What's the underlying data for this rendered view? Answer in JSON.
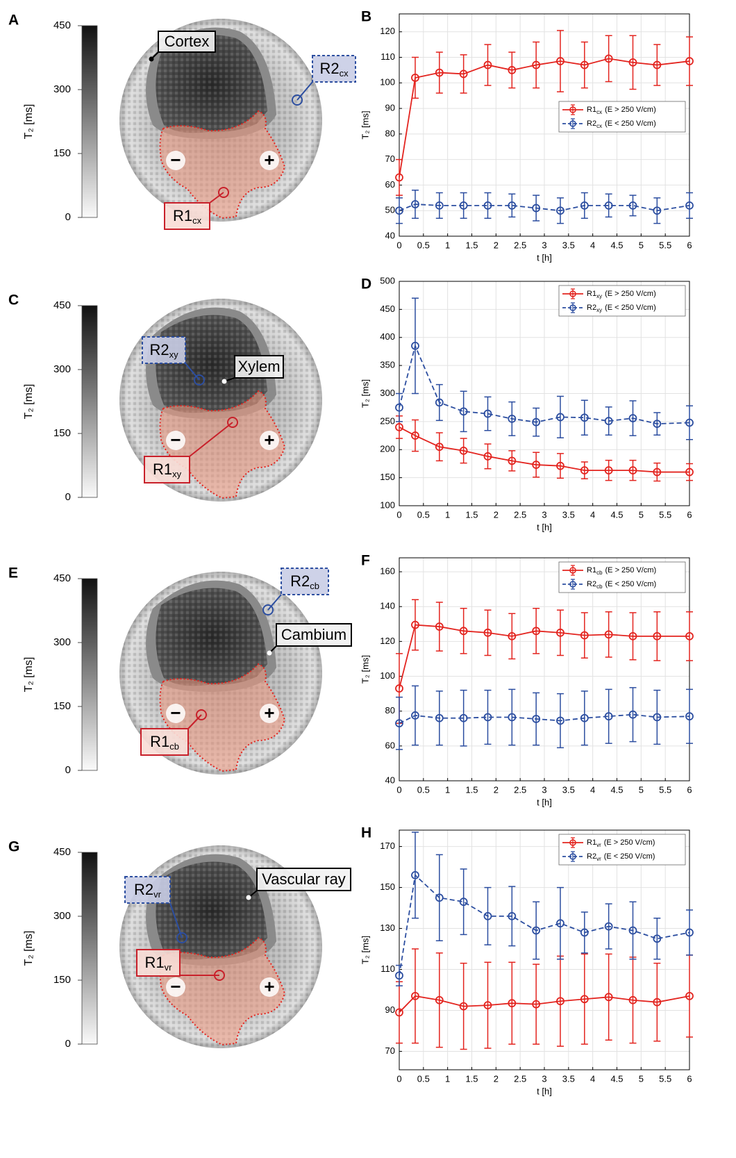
{
  "image_panels": [
    {
      "letter": "A",
      "colorbar": {
        "label": "T₂ [ms]",
        "ylim": [
          0,
          450
        ],
        "yticks": [
          0,
          150,
          300,
          450
        ]
      },
      "electrodes": [
        "−",
        "+"
      ],
      "labels": [
        {
          "text": "Cortex",
          "color": "#000000",
          "border": "solid",
          "marker": "dot"
        },
        {
          "text": "R2",
          "sub": "cx",
          "color": "#2c4ea0",
          "border": "dashed",
          "marker": "circle"
        },
        {
          "text": "R1",
          "sub": "cx",
          "color": "#c8202a",
          "border": "solid",
          "marker": "circle"
        }
      ]
    },
    {
      "letter": "C",
      "colorbar": {
        "label": "T₂ [ms]",
        "ylim": [
          0,
          450
        ],
        "yticks": [
          0,
          150,
          300,
          450
        ]
      },
      "electrodes": [
        "−",
        "+"
      ],
      "labels": [
        {
          "text": "R2",
          "sub": "xy",
          "color": "#2c4ea0",
          "border": "dashed",
          "marker": "circle"
        },
        {
          "text": "Xylem",
          "color": "#000000",
          "border": "solid",
          "marker": "dot"
        },
        {
          "text": "R1",
          "sub": "xy",
          "color": "#c8202a",
          "border": "solid",
          "marker": "circle"
        }
      ]
    },
    {
      "letter": "E",
      "colorbar": {
        "label": "T₂ [ms]",
        "ylim": [
          0,
          450
        ],
        "yticks": [
          0,
          150,
          300,
          450
        ]
      },
      "electrodes": [
        "−",
        "+"
      ],
      "labels": [
        {
          "text": "R2",
          "sub": "cb",
          "color": "#2c4ea0",
          "border": "dashed",
          "marker": "circle"
        },
        {
          "text": "Cambium",
          "color": "#000000",
          "border": "solid",
          "marker": "dot"
        },
        {
          "text": "R1",
          "sub": "cb",
          "color": "#c8202a",
          "border": "solid",
          "marker": "circle"
        }
      ]
    },
    {
      "letter": "G",
      "colorbar": {
        "label": "T₂ [ms]",
        "ylim": [
          0,
          450
        ],
        "yticks": [
          0,
          150,
          300,
          450
        ]
      },
      "electrodes": [
        "−",
        "+"
      ],
      "labels": [
        {
          "text": "Vascular ray",
          "color": "#000000",
          "border": "solid",
          "marker": "dot"
        },
        {
          "text": "R2",
          "sub": "vr",
          "color": "#2c4ea0",
          "border": "dashed",
          "marker": "circle"
        },
        {
          "text": "R1",
          "sub": "vr",
          "color": "#c8202a",
          "border": "solid",
          "marker": "circle"
        }
      ]
    }
  ],
  "chart_data": [
    {
      "type": "line",
      "title": "B",
      "xlabel": "t [h]",
      "ylabel": "T₂ [ms]",
      "grid": true,
      "legend": "east",
      "x": [
        0,
        0.33,
        0.83,
        1.33,
        1.83,
        2.33,
        2.83,
        3.33,
        3.83,
        4.33,
        4.83,
        5.33,
        6
      ],
      "xlim": [
        0,
        6
      ],
      "xticks": [
        0,
        0.5,
        1,
        1.5,
        2,
        2.5,
        3,
        3.5,
        4,
        4.5,
        5,
        5.5,
        6
      ],
      "ylim": [
        40,
        127
      ],
      "yticks": [
        40,
        50,
        60,
        70,
        80,
        90,
        100,
        110,
        120
      ],
      "series": [
        {
          "name": "R1",
          "name_sub": "cx",
          "condition": "(E > 250 V/cm)",
          "color": "#e3241f",
          "line_style": "solid",
          "values": [
            63,
            102,
            104,
            103.5,
            107,
            105,
            107,
            108.5,
            107,
            109.5,
            108,
            107,
            108.5
          ],
          "errors": [
            7,
            8,
            8,
            7.5,
            8,
            7,
            9,
            12,
            9,
            9,
            10.5,
            8,
            9.5
          ]
        },
        {
          "name": "R2",
          "name_sub": "cx",
          "condition": "(E < 250 V/cm)",
          "color": "#2c4ea0",
          "line_style": "dashed",
          "values": [
            50,
            52.5,
            52,
            52,
            52,
            52,
            51,
            50,
            52,
            52,
            52,
            50,
            52
          ],
          "errors": [
            5,
            5.5,
            5,
            5,
            5,
            4.5,
            5,
            5,
            5,
            4.5,
            4,
            5,
            5
          ]
        }
      ]
    },
    {
      "type": "line",
      "title": "D",
      "xlabel": "t [h]",
      "ylabel": "T₂ [ms]",
      "grid": true,
      "legend": "northeast",
      "x": [
        0,
        0.33,
        0.83,
        1.33,
        1.83,
        2.33,
        2.83,
        3.33,
        3.83,
        4.33,
        4.83,
        5.33,
        6
      ],
      "xlim": [
        0,
        6
      ],
      "xticks": [
        0,
        0.5,
        1,
        1.5,
        2,
        2.5,
        3,
        3.5,
        4,
        4.5,
        5,
        5.5,
        6
      ],
      "ylim": [
        100,
        500
      ],
      "yticks": [
        100,
        150,
        200,
        250,
        300,
        350,
        400,
        450,
        500
      ],
      "series": [
        {
          "name": "R1",
          "name_sub": "xy",
          "condition": "(E > 250 V/cm)",
          "color": "#e3241f",
          "line_style": "solid",
          "values": [
            240,
            225,
            205,
            198,
            188,
            180,
            173,
            171,
            163,
            163,
            163,
            160,
            160
          ],
          "errors": [
            20,
            28,
            25,
            22,
            22,
            18,
            22,
            22,
            15,
            18,
            18,
            16,
            15
          ]
        },
        {
          "name": "R2",
          "name_sub": "xy",
          "condition": "(E < 250 V/cm)",
          "color": "#2c4ea0",
          "line_style": "dashed",
          "values": [
            275,
            385,
            284,
            268,
            264,
            255,
            249,
            258,
            257,
            251,
            256,
            246,
            248
          ],
          "errors": [
            25,
            85,
            32,
            36,
            30,
            30,
            25,
            37,
            31,
            25,
            31,
            20,
            30
          ]
        }
      ]
    },
    {
      "type": "line",
      "title": "F",
      "xlabel": "t [h]",
      "ylabel": "T₂ [ms]",
      "grid": true,
      "legend": "northeast",
      "x": [
        0,
        0.33,
        0.83,
        1.33,
        1.83,
        2.33,
        2.83,
        3.33,
        3.83,
        4.33,
        4.83,
        5.33,
        6
      ],
      "xlim": [
        0,
        6
      ],
      "xticks": [
        0,
        0.5,
        1,
        1.5,
        2,
        2.5,
        3,
        3.5,
        4,
        4.5,
        5,
        5.5,
        6
      ],
      "ylim": [
        40,
        168
      ],
      "yticks": [
        40,
        60,
        80,
        100,
        120,
        140,
        160
      ],
      "series": [
        {
          "name": "R1",
          "name_sub": "cb",
          "condition": "(E > 250 V/cm)",
          "color": "#e3241f",
          "line_style": "solid",
          "values": [
            93,
            129.5,
            128.5,
            126,
            125,
            123,
            126,
            125,
            123.5,
            124,
            123,
            123,
            123
          ],
          "errors": [
            20,
            14.5,
            14,
            13,
            13,
            13,
            13,
            13,
            13,
            13,
            13.5,
            14,
            14
          ]
        },
        {
          "name": "R2",
          "name_sub": "cb",
          "condition": "(E < 250 V/cm)",
          "color": "#2c4ea0",
          "line_style": "dashed",
          "values": [
            73,
            77.5,
            76,
            76,
            76.5,
            76.5,
            75.5,
            74.5,
            76,
            77,
            78,
            76.5,
            77
          ],
          "errors": [
            15,
            17,
            15.5,
            16,
            15.5,
            16,
            15,
            15.5,
            15.5,
            15.5,
            15.5,
            15.5,
            15.5
          ]
        }
      ]
    },
    {
      "type": "line",
      "title": "H",
      "xlabel": "t [h]",
      "ylabel": "T₂ [ms]",
      "grid": true,
      "legend": "northeast",
      "x": [
        0,
        0.33,
        0.83,
        1.33,
        1.83,
        2.33,
        2.83,
        3.33,
        3.83,
        4.33,
        4.83,
        5.33,
        6
      ],
      "xlim": [
        0,
        6
      ],
      "xticks": [
        0,
        0.5,
        1,
        1.5,
        2,
        2.5,
        3,
        3.5,
        4,
        4.5,
        5,
        5.5,
        6
      ],
      "ylim": [
        61,
        178
      ],
      "yticks": [
        70,
        90,
        110,
        130,
        150,
        170
      ],
      "series": [
        {
          "name": "R1",
          "name_sub": "vr",
          "condition": "(E > 250 V/cm)",
          "color": "#e3241f",
          "line_style": "solid",
          "values": [
            89,
            97,
            95,
            92,
            92.5,
            93.5,
            93,
            94.5,
            95.5,
            96.5,
            95,
            94,
            97
          ],
          "errors": [
            15,
            23,
            23,
            21,
            21,
            20,
            19.5,
            22,
            22,
            21,
            21,
            19,
            20
          ]
        },
        {
          "name": "R2",
          "name_sub": "vr",
          "condition": "(E < 250 V/cm)",
          "color": "#2c4ea0",
          "line_style": "dashed",
          "values": [
            107,
            156,
            145,
            143,
            136,
            136,
            129,
            132.5,
            128,
            131,
            129,
            125,
            128
          ],
          "errors": [
            5,
            21,
            21,
            16,
            14,
            14.5,
            14,
            17.5,
            10,
            11,
            14,
            10,
            11
          ]
        }
      ]
    }
  ]
}
